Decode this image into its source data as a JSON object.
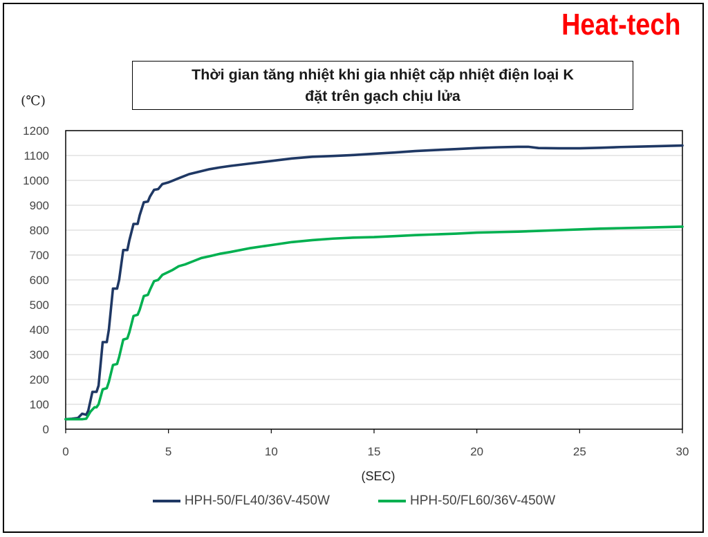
{
  "brand": {
    "logo_text": "Heat-tech",
    "color": "#ff0000"
  },
  "colors": {
    "series1": "#1f3864",
    "series2": "#00b050",
    "grid": "#d9d9d9"
  },
  "chart_data": {
    "type": "line",
    "title_lines": [
      "Thời gian tăng nhiệt khi gia nhiệt cặp nhiệt điện loại K",
      "đặt trên gạch chịu lửa"
    ],
    "ylabel": "(℃)",
    "xlabel": "(SEC)",
    "xlim": [
      0,
      30
    ],
    "ylim": [
      0,
      1200
    ],
    "xticks": [
      0,
      5,
      10,
      15,
      20,
      25,
      30
    ],
    "yticks": [
      0,
      100,
      200,
      300,
      400,
      500,
      600,
      700,
      800,
      900,
      1000,
      1100,
      1200
    ],
    "grid": "horizontal",
    "legend_position": "bottom",
    "series": [
      {
        "name": "HPH-50/FL40/36V-450W",
        "color": "#1f3864",
        "points": [
          [
            0,
            40
          ],
          [
            0.3,
            42
          ],
          [
            0.6,
            45
          ],
          [
            0.8,
            62
          ],
          [
            1.0,
            58
          ],
          [
            1.1,
            75
          ],
          [
            1.3,
            150
          ],
          [
            1.5,
            150
          ],
          [
            1.6,
            175
          ],
          [
            1.8,
            350
          ],
          [
            2.0,
            350
          ],
          [
            2.1,
            400
          ],
          [
            2.3,
            565
          ],
          [
            2.5,
            565
          ],
          [
            2.6,
            600
          ],
          [
            2.8,
            720
          ],
          [
            3.0,
            720
          ],
          [
            3.1,
            760
          ],
          [
            3.3,
            825
          ],
          [
            3.5,
            825
          ],
          [
            3.6,
            860
          ],
          [
            3.8,
            912
          ],
          [
            4.0,
            915
          ],
          [
            4.1,
            935
          ],
          [
            4.3,
            962
          ],
          [
            4.5,
            965
          ],
          [
            4.7,
            985
          ],
          [
            5.0,
            992
          ],
          [
            5.3,
            1002
          ],
          [
            5.6,
            1012
          ],
          [
            6,
            1025
          ],
          [
            6.5,
            1035
          ],
          [
            7,
            1045
          ],
          [
            7.5,
            1052
          ],
          [
            8,
            1058
          ],
          [
            9,
            1068
          ],
          [
            10,
            1078
          ],
          [
            11,
            1088
          ],
          [
            12,
            1095
          ],
          [
            13,
            1098
          ],
          [
            14,
            1102
          ],
          [
            15,
            1107
          ],
          [
            16,
            1112
          ],
          [
            17,
            1118
          ],
          [
            18,
            1122
          ],
          [
            19,
            1126
          ],
          [
            20,
            1130
          ],
          [
            21,
            1133
          ],
          [
            22,
            1135
          ],
          [
            22.5,
            1135
          ],
          [
            23,
            1130
          ],
          [
            24,
            1129
          ],
          [
            25,
            1129
          ],
          [
            26,
            1131
          ],
          [
            27,
            1134
          ],
          [
            28,
            1136
          ],
          [
            29,
            1138
          ],
          [
            30,
            1140
          ]
        ]
      },
      {
        "name": "HPH-50/FL60/36V-450W",
        "color": "#00b050",
        "points": [
          [
            0,
            40
          ],
          [
            0.4,
            40
          ],
          [
            0.8,
            40
          ],
          [
            1.0,
            42
          ],
          [
            1.2,
            70
          ],
          [
            1.4,
            88
          ],
          [
            1.5,
            88
          ],
          [
            1.6,
            100
          ],
          [
            1.8,
            160
          ],
          [
            2.0,
            165
          ],
          [
            2.1,
            190
          ],
          [
            2.3,
            258
          ],
          [
            2.5,
            262
          ],
          [
            2.6,
            290
          ],
          [
            2.8,
            360
          ],
          [
            3.0,
            365
          ],
          [
            3.1,
            390
          ],
          [
            3.3,
            455
          ],
          [
            3.5,
            460
          ],
          [
            3.6,
            480
          ],
          [
            3.8,
            535
          ],
          [
            4.0,
            540
          ],
          [
            4.1,
            560
          ],
          [
            4.3,
            595
          ],
          [
            4.5,
            600
          ],
          [
            4.7,
            620
          ],
          [
            5.0,
            632
          ],
          [
            5.2,
            640
          ],
          [
            5.5,
            655
          ],
          [
            5.8,
            662
          ],
          [
            6.2,
            675
          ],
          [
            6.6,
            688
          ],
          [
            7,
            695
          ],
          [
            7.5,
            705
          ],
          [
            8,
            712
          ],
          [
            9,
            728
          ],
          [
            10,
            740
          ],
          [
            11,
            752
          ],
          [
            12,
            760
          ],
          [
            13,
            766
          ],
          [
            14,
            770
          ],
          [
            15,
            772
          ],
          [
            16,
            776
          ],
          [
            17,
            780
          ],
          [
            18,
            783
          ],
          [
            19,
            786
          ],
          [
            20,
            790
          ],
          [
            21,
            792
          ],
          [
            22,
            794
          ],
          [
            23,
            797
          ],
          [
            24,
            800
          ],
          [
            25,
            803
          ],
          [
            26,
            806
          ],
          [
            27,
            808
          ],
          [
            28,
            810
          ],
          [
            29,
            812
          ],
          [
            30,
            814
          ]
        ]
      }
    ]
  }
}
